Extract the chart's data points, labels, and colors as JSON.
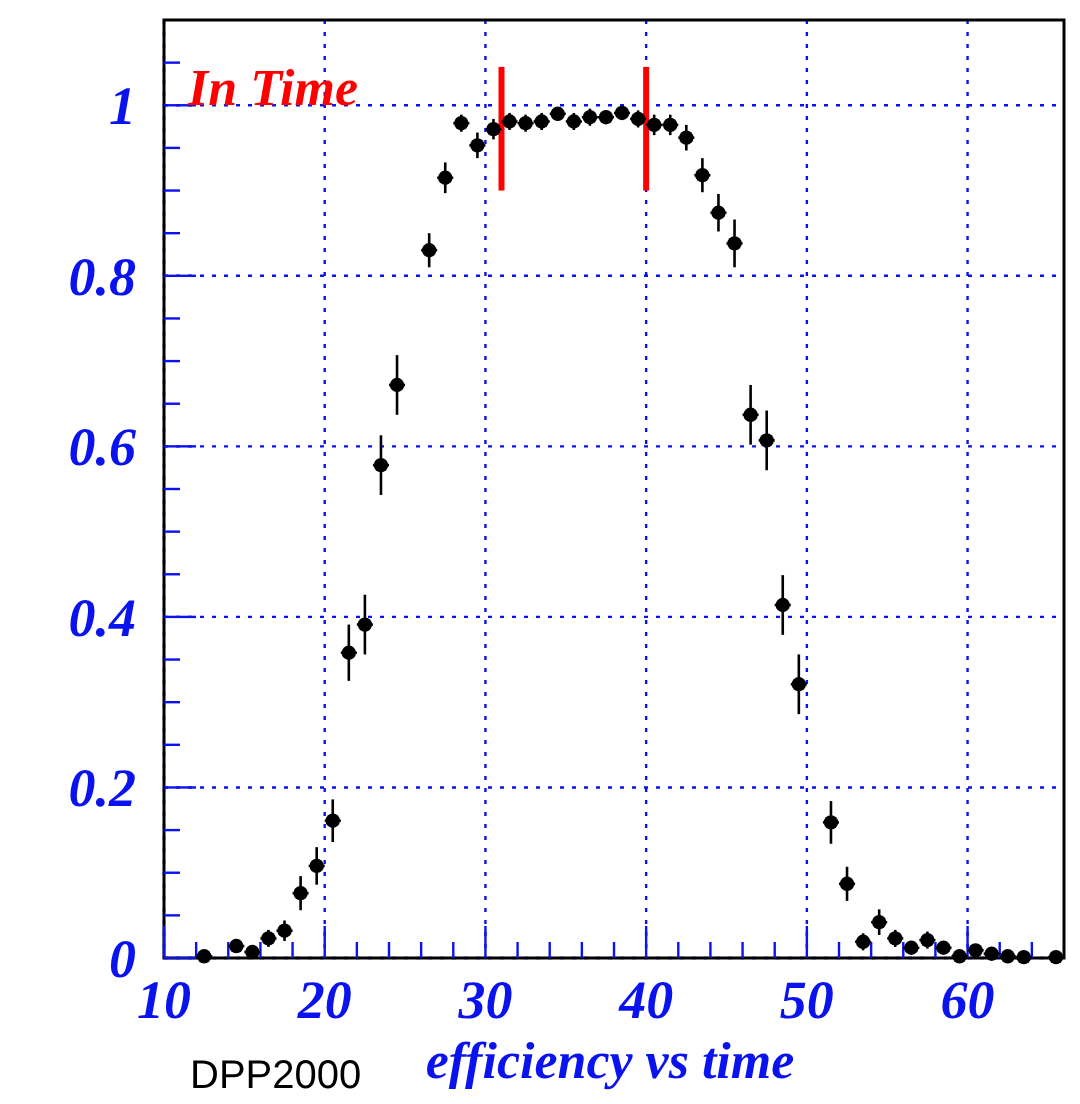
{
  "chart_data": {
    "type": "scatter",
    "xlabel": "efficiency vs time",
    "annotations": [
      "In Time",
      "DPP2000"
    ],
    "x": [
      12.5,
      14.5,
      15.5,
      16.5,
      17.5,
      18.5,
      19.5,
      20.5,
      21.5,
      22.5,
      23.5,
      24.5,
      26.5,
      27.5,
      28.5,
      29.5,
      30.5,
      31.5,
      32.5,
      33.5,
      34.5,
      35.5,
      36.5,
      37.5,
      38.5,
      39.5,
      40.5,
      41.5,
      42.5,
      43.5,
      44.5,
      45.5,
      46.5,
      47.5,
      48.5,
      49.5,
      51.5,
      52.5,
      53.5,
      54.5,
      55.5,
      56.5,
      57.5,
      58.5,
      59.5,
      60.5,
      61.5,
      62.5,
      63.5,
      65.5
    ],
    "series": [
      {
        "color": "#000000",
        "values": [
          0.002,
          0.014,
          0.007,
          0.023,
          0.032,
          0.076,
          0.108,
          0.161,
          0.358,
          0.391,
          0.578,
          0.672,
          0.83,
          0.915,
          0.979,
          0.953,
          0.972,
          0.981,
          0.979,
          0.981,
          0.99,
          0.981,
          0.986,
          0.986,
          0.991,
          0.984,
          0.977,
          0.977,
          0.962,
          0.918,
          0.874,
          0.838,
          0.637,
          0.607,
          0.414,
          0.321,
          0.159,
          0.087,
          0.019,
          0.042,
          0.023,
          0.012,
          0.021,
          0.012,
          0.002,
          0.009,
          0.005,
          0.002,
          0.001,
          0.001
        ],
        "errors": [
          null,
          0.008,
          0.006,
          0.01,
          0.012,
          0.02,
          0.022,
          0.025,
          0.033,
          0.035,
          0.035,
          0.035,
          0.02,
          0.018,
          0.01,
          0.015,
          0.012,
          0.01,
          0.01,
          0.01,
          0.008,
          0.01,
          0.01,
          0.008,
          0.008,
          0.01,
          0.012,
          0.012,
          0.015,
          0.02,
          0.022,
          0.028,
          0.035,
          0.035,
          0.035,
          0.035,
          0.025,
          0.02,
          0.01,
          0.015,
          0.01,
          null,
          0.01,
          null,
          null,
          0.006,
          0.005,
          null,
          null,
          null
        ],
        "xerrors": [
          0.5,
          0.5,
          0.5,
          0.5,
          0.5,
          0.5,
          0.5,
          0.5,
          0.5,
          0.5,
          0.5,
          0.5,
          0.5,
          0.5,
          0.5,
          0.5,
          0.5,
          0.5,
          0.5,
          0.5,
          0.5,
          0.5,
          0.5,
          0.5,
          0.5,
          0.5,
          0.5,
          0.5,
          0.5,
          0.5,
          0.5,
          0.5,
          0.5,
          0.5,
          0.5,
          0.5,
          0.5,
          0.5,
          0.5,
          0.5,
          0.5,
          0.5,
          0.5,
          0.5,
          0.5,
          0.5,
          0.5,
          0.5,
          0.5,
          0.5
        ]
      }
    ],
    "xlim": [
      10,
      66
    ],
    "ylim": [
      0,
      1.1
    ],
    "xticks": [
      10,
      {
        "value": 12,
        "label": null
      },
      {
        "value": 14,
        "label": null
      },
      {
        "value": 16,
        "label": null
      },
      {
        "value": 18,
        "label": null
      },
      20,
      {
        "value": 22,
        "label": null
      },
      {
        "value": 24,
        "label": null
      },
      {
        "value": 26,
        "label": null
      },
      {
        "value": 28,
        "label": null
      },
      30,
      {
        "value": 32,
        "label": null
      },
      {
        "value": 34,
        "label": null
      },
      {
        "value": 36,
        "label": null
      },
      {
        "value": 38,
        "label": null
      },
      40,
      {
        "value": 42,
        "label": null
      },
      {
        "value": 44,
        "label": null
      },
      {
        "value": 46,
        "label": null
      },
      {
        "value": 48,
        "label": null
      },
      50,
      {
        "value": 52,
        "label": null
      },
      {
        "value": 54,
        "label": null
      },
      {
        "value": 56,
        "label": null
      },
      {
        "value": 58,
        "label": null
      },
      60,
      {
        "value": 62,
        "label": null
      },
      {
        "value": 64,
        "label": null
      }
    ],
    "yticks": [
      0,
      {
        "value": 0.05,
        "label": null
      },
      {
        "value": 0.1,
        "label": null
      },
      {
        "value": 0.15,
        "label": null
      },
      0.2,
      {
        "value": 0.25,
        "label": null
      },
      {
        "value": 0.3,
        "label": null
      },
      {
        "value": 0.35,
        "label": null
      },
      0.4,
      {
        "value": 0.45,
        "label": null
      },
      {
        "value": 0.5,
        "label": null
      },
      {
        "value": 0.55,
        "label": null
      },
      0.6,
      {
        "value": 0.65,
        "label": null
      },
      {
        "value": 0.7,
        "label": null
      },
      {
        "value": 0.75,
        "label": null
      },
      0.8,
      {
        "value": 0.85,
        "label": null
      },
      {
        "value": 0.9,
        "label": null
      },
      {
        "value": 0.95,
        "label": null
      },
      1,
      {
        "value": 1.05,
        "label": null
      }
    ],
    "grid": true,
    "marker": "circle",
    "ref_lines": [
      {
        "axis": "x",
        "value": 31,
        "color": "#ff0000"
      },
      {
        "axis": "x",
        "value": 40,
        "color": "#ff0000"
      }
    ]
  }
}
